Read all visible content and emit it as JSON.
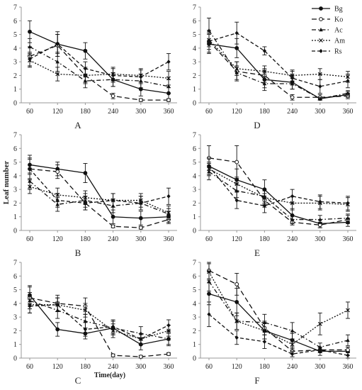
{
  "chart_data": {
    "shared": {
      "type": "line",
      "x": [
        60,
        120,
        180,
        240,
        300,
        360
      ],
      "xticks": [
        "60",
        "120",
        "180",
        "240",
        "300",
        "360"
      ],
      "ylim": [
        0,
        7
      ],
      "yticks": [
        "0",
        "1",
        "2",
        "3",
        "4",
        "5",
        "6",
        "7"
      ],
      "legend_placement": "top-right",
      "series_names": [
        "Bg",
        "Ko",
        "Ac",
        "Am",
        "Rs"
      ],
      "grid": false
    },
    "panels": [
      {
        "label": "A",
        "xlabel": "",
        "ylabel": "",
        "series": [
          {
            "name": "Bg",
            "values": [
              5.2,
              4.3,
              3.8,
              1.7,
              1.0,
              0.7
            ],
            "errors": [
              0.8,
              0.9,
              0.6,
              0.5,
              0.5,
              0.4
            ]
          },
          {
            "name": "Ko",
            "values": [
              3.4,
              4.2,
              2.0,
              0.5,
              0.2,
              0.2
            ],
            "errors": [
              0.7,
              0.8,
              0.6,
              0.2,
              0.1,
              0.1
            ]
          },
          {
            "name": "Ac",
            "values": [
              4.1,
              3.0,
              1.6,
              1.7,
              1.6,
              1.2
            ],
            "errors": [
              0.6,
              0.7,
              0.5,
              0.5,
              0.5,
              0.5
            ]
          },
          {
            "name": "Am",
            "values": [
              3.1,
              2.1,
              2.0,
              2.1,
              2.0,
              1.8
            ],
            "errors": [
              0.5,
              0.5,
              0.5,
              0.5,
              0.5,
              0.5
            ]
          },
          {
            "name": "Rs",
            "values": [
              3.2,
              4.3,
              2.5,
              2.0,
              1.9,
              3.0
            ],
            "errors": [
              0.5,
              0.7,
              0.5,
              0.5,
              0.5,
              0.6
            ]
          }
        ]
      },
      {
        "label": "D",
        "xlabel": "",
        "ylabel": "",
        "series": [
          {
            "name": "Bg",
            "values": [
              4.3,
              4.0,
              1.7,
              1.5,
              0.3,
              0.6
            ],
            "errors": [
              0.7,
              0.7,
              0.6,
              0.5,
              0.1,
              0.2
            ]
          },
          {
            "name": "Ko",
            "values": [
              4.5,
              2.3,
              2.0,
              0.4,
              0.4,
              0.5
            ],
            "errors": [
              0.8,
              0.7,
              0.5,
              0.2,
              0.2,
              0.2
            ]
          },
          {
            "name": "Ac",
            "values": [
              5.3,
              2.2,
              1.4,
              1.4,
              0.3,
              0.7
            ],
            "errors": [
              0.9,
              0.5,
              0.5,
              0.4,
              0.1,
              0.2
            ]
          },
          {
            "name": "Am",
            "values": [
              4.6,
              2.5,
              2.3,
              2.0,
              2.1,
              1.9
            ],
            "errors": [
              0.5,
              0.5,
              0.4,
              0.4,
              0.4,
              0.4
            ]
          },
          {
            "name": "Rs",
            "values": [
              4.5,
              5.1,
              3.8,
              1.8,
              1.2,
              1.6
            ],
            "errors": [
              0.6,
              0.8,
              0.3,
              0.5,
              0.5,
              0.5
            ]
          }
        ]
      },
      {
        "label": "B",
        "xlabel": "",
        "ylabel": "Leaf number",
        "series": [
          {
            "name": "Bg",
            "values": [
              4.8,
              4.5,
              4.2,
              1.0,
              0.9,
              1.0
            ],
            "errors": [
              0.7,
              0.5,
              0.7,
              0.5,
              0.5,
              0.4
            ]
          },
          {
            "name": "Ko",
            "values": [
              4.5,
              4.3,
              2.0,
              0.3,
              0.2,
              0.8
            ],
            "errors": [
              0.8,
              0.5,
              0.5,
              0.1,
              0.1,
              0.3
            ]
          },
          {
            "name": "Ac",
            "values": [
              3.6,
              1.9,
              2.2,
              1.8,
              2.0,
              1.2
            ],
            "errors": [
              0.6,
              0.5,
              0.5,
              0.5,
              0.5,
              0.4
            ]
          },
          {
            "name": "Am",
            "values": [
              3.2,
              2.6,
              2.4,
              2.2,
              2.2,
              1.3
            ],
            "errors": [
              0.5,
              0.5,
              0.5,
              0.5,
              0.5,
              0.5
            ]
          },
          {
            "name": "Rs",
            "values": [
              4.5,
              2.2,
              2.0,
              2.2,
              2.0,
              2.5
            ],
            "errors": [
              0.7,
              0.5,
              0.5,
              0.5,
              0.5,
              0.6
            ]
          }
        ]
      },
      {
        "label": "E",
        "xlabel": "",
        "ylabel": "",
        "series": [
          {
            "name": "Bg",
            "values": [
              4.7,
              3.7,
              3.0,
              1.1,
              0.5,
              0.6
            ],
            "errors": [
              0.6,
              0.8,
              0.7,
              0.5,
              0.3,
              0.3
            ]
          },
          {
            "name": "Ko",
            "values": [
              5.3,
              5.0,
              2.2,
              0.6,
              0.4,
              0.8
            ],
            "errors": [
              0.9,
              1.2,
              0.5,
              0.2,
              0.2,
              0.3
            ]
          },
          {
            "name": "Ac",
            "values": [
              4.3,
              2.9,
              2.5,
              0.8,
              0.8,
              0.9
            ],
            "errors": [
              0.6,
              0.5,
              0.5,
              0.3,
              0.3,
              0.3
            ]
          },
          {
            "name": "Am",
            "values": [
              4.5,
              3.4,
              2.4,
              2.0,
              2.0,
              1.9
            ],
            "errors": [
              0.5,
              0.5,
              0.5,
              0.5,
              0.5,
              0.5
            ]
          },
          {
            "name": "Rs",
            "values": [
              4.7,
              2.2,
              1.8,
              2.5,
              2.1,
              2.0
            ],
            "errors": [
              0.6,
              0.6,
              0.5,
              0.5,
              0.5,
              0.5
            ]
          }
        ]
      },
      {
        "label": "C",
        "xlabel": "Time(day)",
        "ylabel": "",
        "series": [
          {
            "name": "Bg",
            "values": [
              4.6,
              2.1,
              1.8,
              2.2,
              1.0,
              1.4
            ],
            "errors": [
              0.7,
              0.5,
              0.4,
              0.5,
              0.4,
              0.5
            ]
          },
          {
            "name": "Ko",
            "values": [
              4.4,
              4.0,
              3.8,
              0.2,
              0.1,
              0.3
            ],
            "errors": [
              0.8,
              0.6,
              0.6,
              0.1,
              0.1,
              0.1
            ]
          },
          {
            "name": "Ac",
            "values": [
              4.2,
              3.5,
              2.7,
              2.2,
              1.8,
              1.4
            ],
            "errors": [
              0.6,
              0.6,
              0.5,
              0.5,
              0.5,
              0.4
            ]
          },
          {
            "name": "Am",
            "values": [
              3.9,
              3.9,
              3.5,
              2.0,
              1.4,
              2.0
            ],
            "errors": [
              0.6,
              0.5,
              0.5,
              0.5,
              0.4,
              0.4
            ]
          },
          {
            "name": "Rs",
            "values": [
              3.8,
              3.9,
              2.1,
              2.3,
              1.4,
              2.4
            ],
            "errors": [
              0.5,
              0.5,
              0.5,
              0.5,
              0.4,
              0.4
            ]
          }
        ]
      },
      {
        "label": "F",
        "xlabel": "",
        "ylabel": "",
        "series": [
          {
            "name": "Bg",
            "values": [
              4.7,
              4.1,
              2.0,
              1.3,
              0.5,
              0.5
            ],
            "errors": [
              0.8,
              1.0,
              0.6,
              0.5,
              0.3,
              0.3
            ]
          },
          {
            "name": "Ko",
            "values": [
              6.4,
              5.4,
              2.2,
              0.5,
              0.6,
              0.6
            ],
            "errors": [
              0.6,
              0.8,
              0.5,
              0.2,
              0.2,
              0.2
            ]
          },
          {
            "name": "Ac",
            "values": [
              5.6,
              2.7,
              2.6,
              2.0,
              0.8,
              1.3
            ],
            "errors": [
              0.7,
              0.6,
              0.6,
              0.6,
              0.3,
              0.4
            ]
          },
          {
            "name": "Am",
            "values": [
              6.3,
              2.7,
              2.0,
              1.0,
              2.5,
              3.5
            ],
            "errors": [
              0.6,
              0.6,
              0.6,
              0.4,
              0.8,
              0.6
            ]
          },
          {
            "name": "Rs",
            "values": [
              3.2,
              1.5,
              1.2,
              0.3,
              0.6,
              0.2
            ],
            "errors": [
              0.9,
              0.5,
              0.5,
              0.2,
              0.2,
              0.2
            ]
          }
        ]
      }
    ]
  }
}
